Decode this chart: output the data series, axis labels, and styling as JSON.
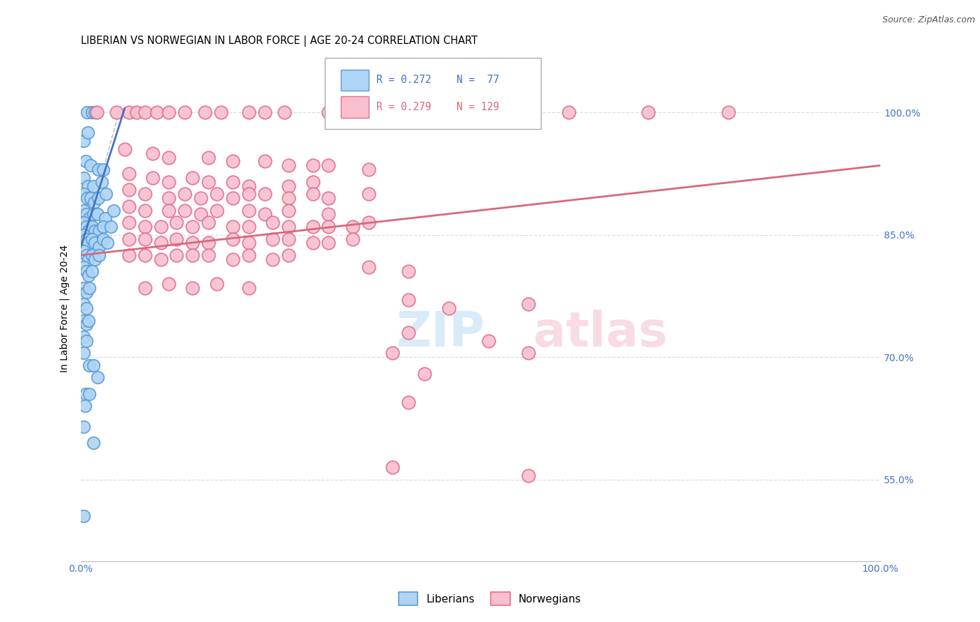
{
  "title": "LIBERIAN VS NORWEGIAN IN LABOR FORCE | AGE 20-24 CORRELATION CHART",
  "source": "Source: ZipAtlas.com",
  "ylabel": "In Labor Force | Age 20-24",
  "watermark_zip": "ZIP",
  "watermark_atlas": "atlas",
  "blue_color_face": "#aed4f5",
  "blue_color_edge": "#5b9bd5",
  "pink_color_face": "#f9bfce",
  "pink_color_edge": "#e07090",
  "blue_line_color": "#4472c4",
  "pink_line_color": "#d9687a",
  "diag_line_color": "#c0c0c0",
  "xlim": [
    0,
    100
  ],
  "ylim": [
    45,
    107
  ],
  "ytick_vals": [
    55,
    70,
    85,
    100
  ],
  "ytick_labels": [
    "55.0%",
    "70.0%",
    "85.0%",
    "100.0%"
  ],
  "xtick_vals": [
    0,
    100
  ],
  "xtick_labels": [
    "0.0%",
    "100.0%"
  ],
  "grid_color": "#dddddd",
  "blue_scatter": [
    [
      0.8,
      100.0
    ],
    [
      1.4,
      100.0
    ],
    [
      1.8,
      100.0
    ],
    [
      0.4,
      96.5
    ],
    [
      0.9,
      97.5
    ],
    [
      0.6,
      94.0
    ],
    [
      1.2,
      93.5
    ],
    [
      2.2,
      93.0
    ],
    [
      2.8,
      93.0
    ],
    [
      0.4,
      92.0
    ],
    [
      0.9,
      91.0
    ],
    [
      1.6,
      91.0
    ],
    [
      2.6,
      91.5
    ],
    [
      0.4,
      90.0
    ],
    [
      0.8,
      89.5
    ],
    [
      1.2,
      89.5
    ],
    [
      1.7,
      89.0
    ],
    [
      2.2,
      89.5
    ],
    [
      3.2,
      90.0
    ],
    [
      0.4,
      88.0
    ],
    [
      0.7,
      87.5
    ],
    [
      1.1,
      87.0
    ],
    [
      1.6,
      87.5
    ],
    [
      2.1,
      87.5
    ],
    [
      3.1,
      87.0
    ],
    [
      4.1,
      88.0
    ],
    [
      0.4,
      86.5
    ],
    [
      0.7,
      86.0
    ],
    [
      1.0,
      85.5
    ],
    [
      1.4,
      86.0
    ],
    [
      1.8,
      85.5
    ],
    [
      2.3,
      85.5
    ],
    [
      2.8,
      86.0
    ],
    [
      3.8,
      86.0
    ],
    [
      0.4,
      85.0
    ],
    [
      0.7,
      84.5
    ],
    [
      1.0,
      84.0
    ],
    [
      1.4,
      84.5
    ],
    [
      1.8,
      84.0
    ],
    [
      2.3,
      83.5
    ],
    [
      2.8,
      84.5
    ],
    [
      3.3,
      84.0
    ],
    [
      0.4,
      83.0
    ],
    [
      0.7,
      82.5
    ],
    [
      1.0,
      82.0
    ],
    [
      1.4,
      82.5
    ],
    [
      1.8,
      82.0
    ],
    [
      2.3,
      82.5
    ],
    [
      0.4,
      81.0
    ],
    [
      0.7,
      80.5
    ],
    [
      1.0,
      80.0
    ],
    [
      1.4,
      80.5
    ],
    [
      0.4,
      78.5
    ],
    [
      0.7,
      78.0
    ],
    [
      1.1,
      78.5
    ],
    [
      0.4,
      76.5
    ],
    [
      0.7,
      76.0
    ],
    [
      0.4,
      74.5
    ],
    [
      0.7,
      74.0
    ],
    [
      1.0,
      74.5
    ],
    [
      0.4,
      72.5
    ],
    [
      0.7,
      72.0
    ],
    [
      0.4,
      70.5
    ],
    [
      1.1,
      69.0
    ],
    [
      1.6,
      69.0
    ],
    [
      2.1,
      67.5
    ],
    [
      0.6,
      65.5
    ],
    [
      1.1,
      65.5
    ],
    [
      0.5,
      64.0
    ],
    [
      0.4,
      61.5
    ],
    [
      1.6,
      59.5
    ],
    [
      0.4,
      50.5
    ]
  ],
  "pink_scatter": [
    [
      2.0,
      100.0
    ],
    [
      4.5,
      100.0
    ],
    [
      6.0,
      100.0
    ],
    [
      7.0,
      100.0
    ],
    [
      8.0,
      100.0
    ],
    [
      9.5,
      100.0
    ],
    [
      11.0,
      100.0
    ],
    [
      13.0,
      100.0
    ],
    [
      15.5,
      100.0
    ],
    [
      17.5,
      100.0
    ],
    [
      21.0,
      100.0
    ],
    [
      23.0,
      100.0
    ],
    [
      25.5,
      100.0
    ],
    [
      31.0,
      100.0
    ],
    [
      33.5,
      100.0
    ],
    [
      41.0,
      100.0
    ],
    [
      46.0,
      100.0
    ],
    [
      51.0,
      100.0
    ],
    [
      61.0,
      100.0
    ],
    [
      71.0,
      100.0
    ],
    [
      81.0,
      100.0
    ],
    [
      5.5,
      95.5
    ],
    [
      9.0,
      95.0
    ],
    [
      11.0,
      94.5
    ],
    [
      16.0,
      94.5
    ],
    [
      19.0,
      94.0
    ],
    [
      23.0,
      94.0
    ],
    [
      26.0,
      93.5
    ],
    [
      29.0,
      93.5
    ],
    [
      31.0,
      93.5
    ],
    [
      36.0,
      93.0
    ],
    [
      6.0,
      92.5
    ],
    [
      9.0,
      92.0
    ],
    [
      11.0,
      91.5
    ],
    [
      14.0,
      92.0
    ],
    [
      16.0,
      91.5
    ],
    [
      19.0,
      91.5
    ],
    [
      21.0,
      91.0
    ],
    [
      26.0,
      91.0
    ],
    [
      29.0,
      91.5
    ],
    [
      6.0,
      90.5
    ],
    [
      8.0,
      90.0
    ],
    [
      11.0,
      89.5
    ],
    [
      13.0,
      90.0
    ],
    [
      15.0,
      89.5
    ],
    [
      17.0,
      90.0
    ],
    [
      19.0,
      89.5
    ],
    [
      21.0,
      90.0
    ],
    [
      23.0,
      90.0
    ],
    [
      26.0,
      89.5
    ],
    [
      29.0,
      90.0
    ],
    [
      31.0,
      89.5
    ],
    [
      36.0,
      90.0
    ],
    [
      6.0,
      88.5
    ],
    [
      8.0,
      88.0
    ],
    [
      11.0,
      88.0
    ],
    [
      13.0,
      88.0
    ],
    [
      15.0,
      87.5
    ],
    [
      17.0,
      88.0
    ],
    [
      21.0,
      88.0
    ],
    [
      23.0,
      87.5
    ],
    [
      26.0,
      88.0
    ],
    [
      31.0,
      87.5
    ],
    [
      6.0,
      86.5
    ],
    [
      8.0,
      86.0
    ],
    [
      10.0,
      86.0
    ],
    [
      12.0,
      86.5
    ],
    [
      14.0,
      86.0
    ],
    [
      16.0,
      86.5
    ],
    [
      19.0,
      86.0
    ],
    [
      21.0,
      86.0
    ],
    [
      24.0,
      86.5
    ],
    [
      26.0,
      86.0
    ],
    [
      29.0,
      86.0
    ],
    [
      31.0,
      86.0
    ],
    [
      34.0,
      86.0
    ],
    [
      36.0,
      86.5
    ],
    [
      6.0,
      84.5
    ],
    [
      8.0,
      84.5
    ],
    [
      10.0,
      84.0
    ],
    [
      12.0,
      84.5
    ],
    [
      14.0,
      84.0
    ],
    [
      16.0,
      84.0
    ],
    [
      19.0,
      84.5
    ],
    [
      21.0,
      84.0
    ],
    [
      24.0,
      84.5
    ],
    [
      26.0,
      84.5
    ],
    [
      29.0,
      84.0
    ],
    [
      31.0,
      84.0
    ],
    [
      34.0,
      84.5
    ],
    [
      6.0,
      82.5
    ],
    [
      8.0,
      82.5
    ],
    [
      10.0,
      82.0
    ],
    [
      12.0,
      82.5
    ],
    [
      14.0,
      82.5
    ],
    [
      16.0,
      82.5
    ],
    [
      19.0,
      82.0
    ],
    [
      21.0,
      82.5
    ],
    [
      24.0,
      82.0
    ],
    [
      26.0,
      82.5
    ],
    [
      8.0,
      78.5
    ],
    [
      11.0,
      79.0
    ],
    [
      14.0,
      78.5
    ],
    [
      17.0,
      79.0
    ],
    [
      21.0,
      78.5
    ],
    [
      36.0,
      81.0
    ],
    [
      41.0,
      80.5
    ],
    [
      41.0,
      77.0
    ],
    [
      46.0,
      76.0
    ],
    [
      56.0,
      76.5
    ],
    [
      41.0,
      73.0
    ],
    [
      51.0,
      72.0
    ],
    [
      39.0,
      70.5
    ],
    [
      56.0,
      70.5
    ],
    [
      43.0,
      68.0
    ],
    [
      39.0,
      56.5
    ],
    [
      56.0,
      55.5
    ],
    [
      41.0,
      64.5
    ]
  ],
  "blue_line": {
    "x0": 0.0,
    "x1": 5.5,
    "y0": 83.5,
    "y1": 100.5
  },
  "pink_line": {
    "x0": 0.0,
    "x1": 100.0,
    "y0": 82.5,
    "y1": 93.5
  },
  "diag_line": {
    "x0": 0.0,
    "x1": 5.0,
    "y0": 83.0,
    "y1": 100.8
  }
}
